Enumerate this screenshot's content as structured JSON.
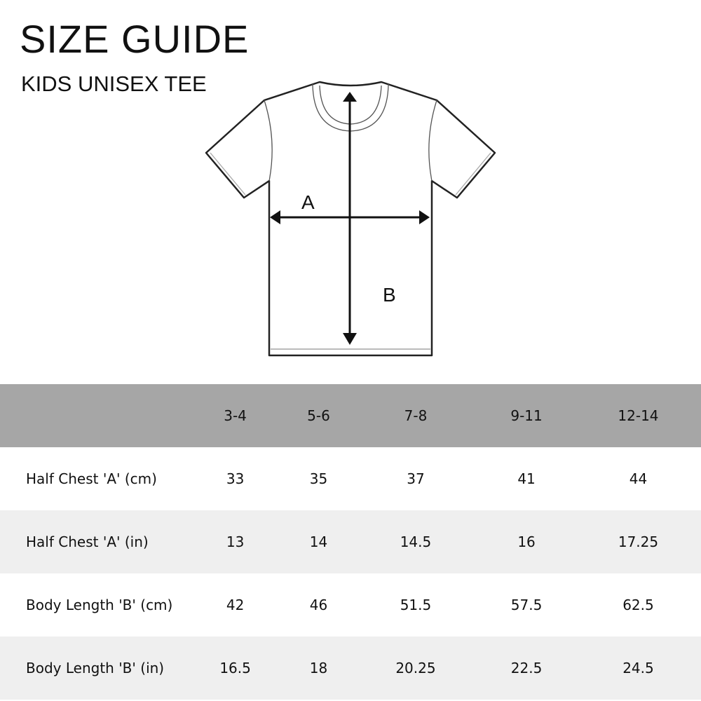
{
  "header": {
    "title": "SIZE GUIDE",
    "subtitle": "KIDS UNISEX TEE"
  },
  "diagram": {
    "width_label": "A",
    "length_label": "B"
  },
  "table": {
    "columns": [
      "3-4",
      "5-6",
      "7-8",
      "9-11",
      "12-14"
    ],
    "rows": [
      {
        "label": "Half Chest  'A' (cm)",
        "values": [
          "33",
          "35",
          "37",
          "41",
          "44"
        ]
      },
      {
        "label": "Half Chest 'A' (in)",
        "values": [
          "13",
          "14",
          "14.5",
          "16",
          "17.25"
        ]
      },
      {
        "label": "Body Length  'B' (cm)",
        "values": [
          "42",
          "46",
          "51.5",
          "57.5",
          "62.5"
        ]
      },
      {
        "label": "Body Length  'B' (in)",
        "values": [
          "16.5",
          "18",
          "20.25",
          "22.5",
          "24.5"
        ]
      }
    ]
  },
  "colors": {
    "header_band": "#a6a6a6",
    "alt_row": "#efefef"
  }
}
